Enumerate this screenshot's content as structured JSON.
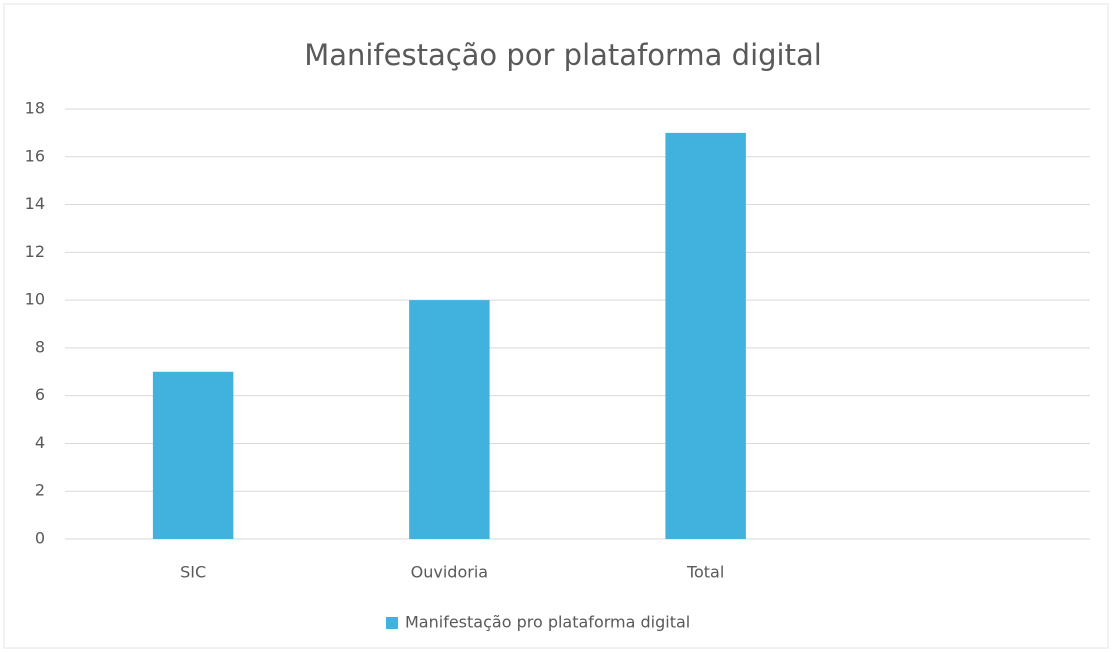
{
  "chart_data": {
    "type": "bar",
    "title": "Manifestação por plataforma digital",
    "categories": [
      "SIC",
      "Ouvidoria",
      "Total",
      null
    ],
    "series": [
      {
        "name": "Manifestação pro plataforma digital",
        "color": "#41b1de",
        "values": [
          7,
          10,
          17,
          null
        ]
      }
    ],
    "ylim": [
      0,
      18
    ],
    "yticks": [
      0,
      2,
      4,
      6,
      8,
      10,
      12,
      14,
      16,
      18
    ],
    "grid": true,
    "legend": "bottom"
  }
}
